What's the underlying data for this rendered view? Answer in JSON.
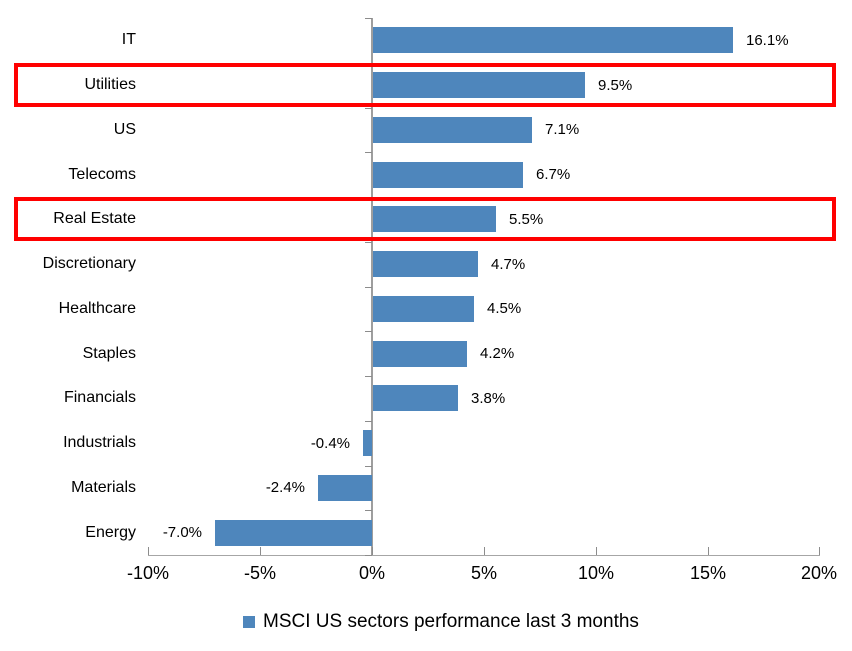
{
  "chart_data": {
    "type": "bar",
    "orientation": "horizontal",
    "title": "",
    "xlabel": "",
    "ylabel": "",
    "categories": [
      "IT",
      "Utilities",
      "US",
      "Telecoms",
      "Real Estate",
      "Discretionary",
      "Healthcare",
      "Staples",
      "Financials",
      "Industrials",
      "Materials",
      "Energy"
    ],
    "values": [
      16.1,
      9.5,
      7.1,
      6.7,
      5.5,
      4.7,
      4.5,
      4.2,
      3.8,
      -0.4,
      -2.4,
      -7.0
    ],
    "value_labels": [
      "16.1%",
      "9.5%",
      "7.1%",
      "6.7%",
      "5.5%",
      "4.7%",
      "4.5%",
      "4.2%",
      "3.8%",
      "-0.4%",
      "-2.4%",
      "-7.0%"
    ],
    "highlighted_categories": [
      "Utilities",
      "Real Estate"
    ],
    "xlim": [
      -10,
      20
    ],
    "x_ticks": [
      {
        "value": -10,
        "label": "-10%"
      },
      {
        "value": -5,
        "label": "-5%"
      },
      {
        "value": 0,
        "label": "0%"
      },
      {
        "value": 5,
        "label": "5%"
      },
      {
        "value": 10,
        "label": "10%"
      },
      {
        "value": 15,
        "label": "15%"
      },
      {
        "value": 20,
        "label": "20%"
      }
    ],
    "grid": "off",
    "legend": {
      "position": "bottom-center",
      "label": "MSCI US sectors performance last 3 months"
    },
    "colors": {
      "bar": "#4E86BC",
      "highlight_box": "#FF0000",
      "value_axis_line": "#A6A6A6",
      "category_axis_line": "#9E9E9E",
      "tick": "#8C8C8C",
      "text": "#000000"
    }
  }
}
